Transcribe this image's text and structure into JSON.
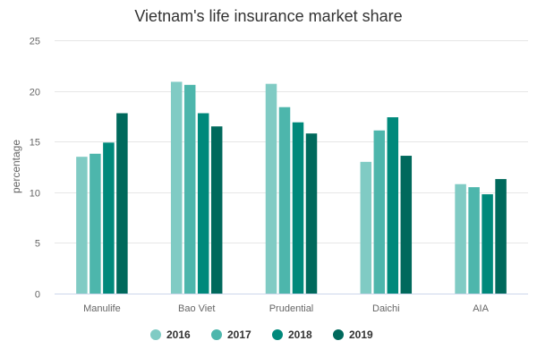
{
  "chart_data": {
    "type": "bar",
    "title": "Vietnam's life insurance market share",
    "xlabel": "",
    "ylabel": "percentage",
    "ylim": [
      0,
      25
    ],
    "yticks": [
      0,
      5,
      10,
      15,
      20,
      25
    ],
    "grid": true,
    "legend_position": "bottom",
    "categories": [
      "Manulife",
      "Bao Viet",
      "Prudential",
      "Daichi",
      "AIA"
    ],
    "series": [
      {
        "name": "2016",
        "color": "#80cbc4",
        "values": [
          13.5,
          20.9,
          20.7,
          13.0,
          10.8
        ]
      },
      {
        "name": "2017",
        "color": "#4db6ac",
        "values": [
          13.8,
          20.6,
          18.4,
          16.1,
          10.5
        ]
      },
      {
        "name": "2018",
        "color": "#00897b",
        "values": [
          14.9,
          17.8,
          16.9,
          17.4,
          9.8
        ]
      },
      {
        "name": "2019",
        "color": "#00695c",
        "values": [
          17.8,
          16.5,
          15.8,
          13.6,
          11.3
        ]
      }
    ]
  }
}
